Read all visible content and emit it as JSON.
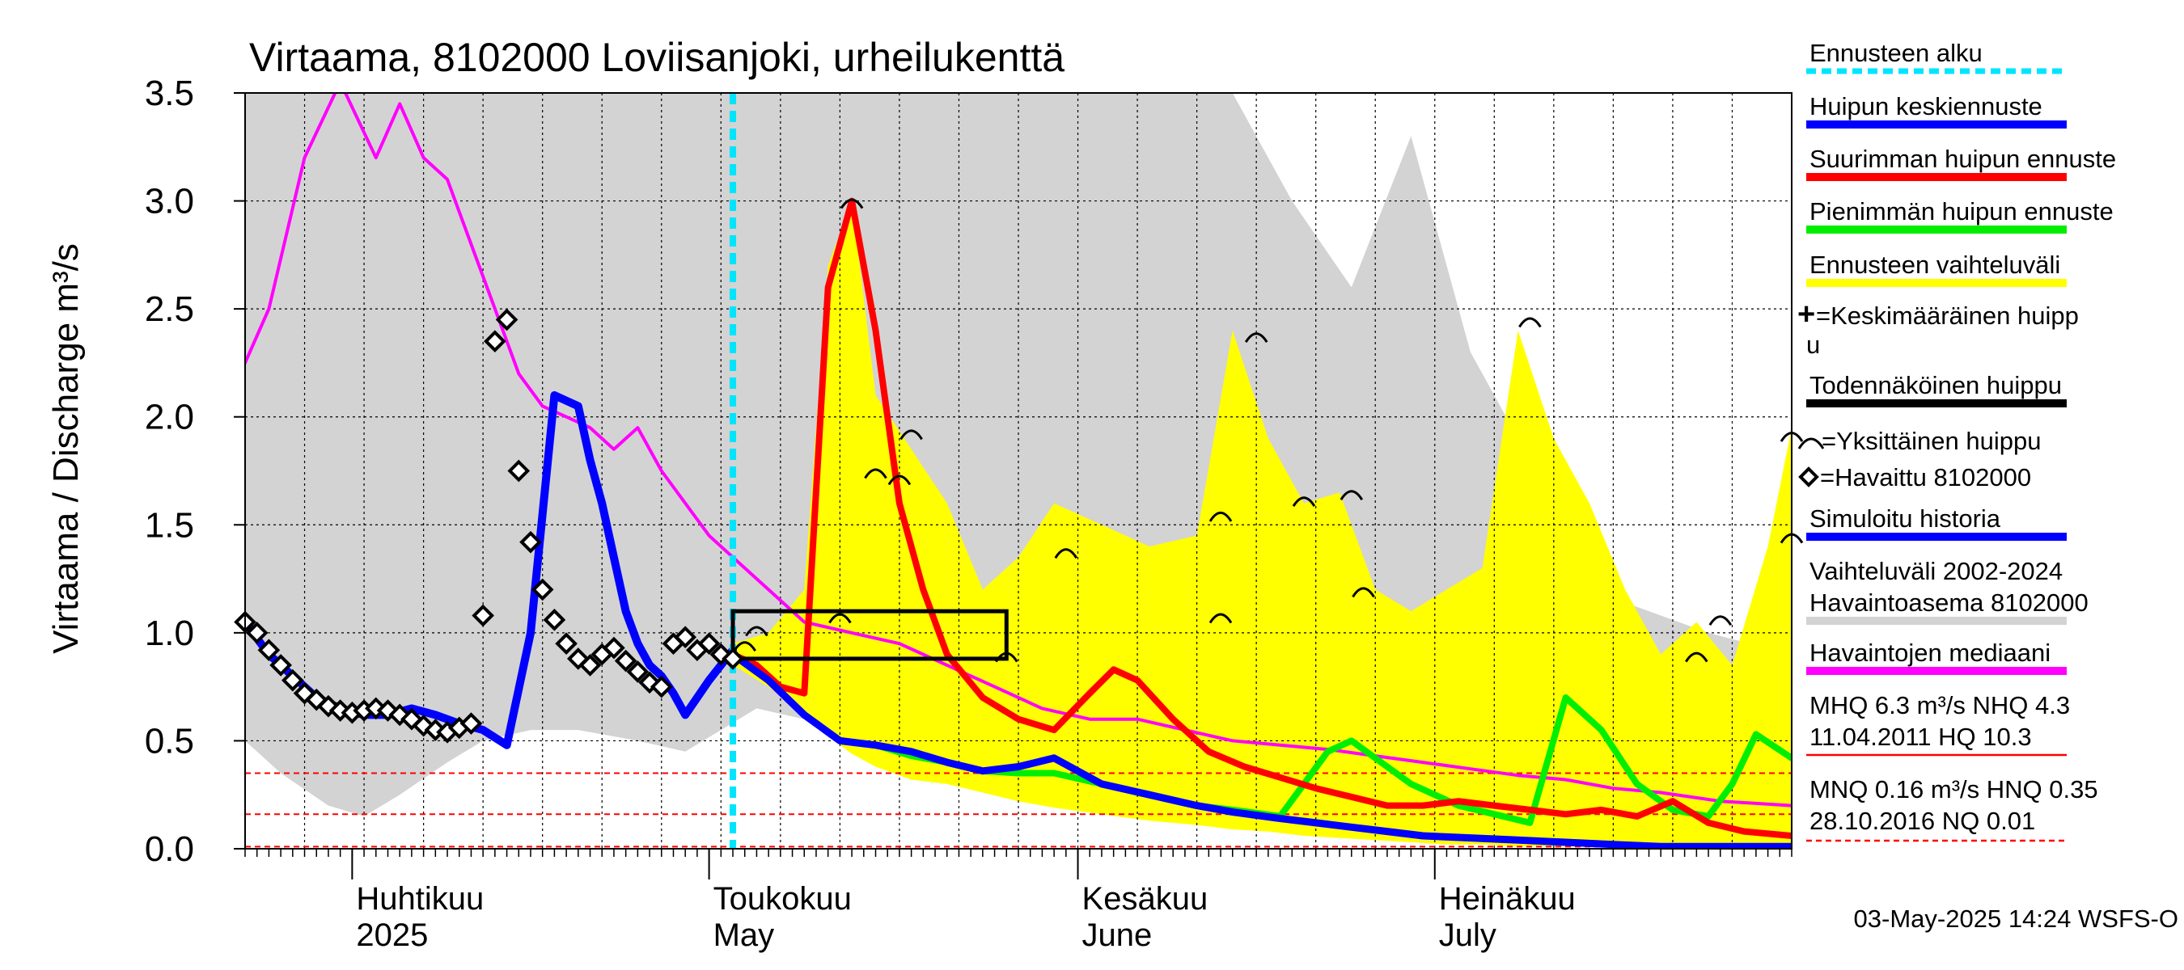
{
  "chart_data": {
    "type": "line",
    "title": "Virtaama, 8102000 Loviisanjoki, urheilukenttä",
    "ylabel": "Virtaama / Discharge   m³/s",
    "ylim": [
      0,
      3.5
    ],
    "yticks": [
      "0.0",
      "0.5",
      "1.0",
      "1.5",
      "2.0",
      "2.5",
      "3.0",
      "3.5"
    ],
    "xlim": [
      "2025-03-23",
      "2025-07-31"
    ],
    "grid": true,
    "legend_position": "right",
    "months": [
      {
        "fi": "Huhtikuu",
        "en": "2025",
        "date": "2025-04-01"
      },
      {
        "fi": "Toukokuu",
        "en": "May",
        "date": "2025-05-01"
      },
      {
        "fi": "Kesäkuu",
        "en": "June",
        "date": "2025-06-01"
      },
      {
        "fi": "Heinäkuu",
        "en": "July",
        "date": "2025-07-01"
      }
    ],
    "forecast_start": "2025-05-03",
    "reference_lines": [
      {
        "name": "MHQ",
        "value": 6.3
      },
      {
        "name": "NHQ",
        "value": 4.3
      },
      {
        "name": "HQ",
        "value": 10.3
      },
      {
        "name": "MNQ",
        "value": 0.16
      },
      {
        "name": "HNQ",
        "value": 0.35
      },
      {
        "name": "NQ",
        "value": 0.01
      }
    ],
    "probable_peak_box": {
      "x_start": "2025-05-03",
      "x_end": "2025-05-26",
      "y_low": 0.88,
      "y_high": 1.1
    },
    "series": [
      {
        "name": "Vaihteluväli 2002-2024 Havaintoasema 8102000",
        "kind": "band",
        "color": "#d3d3d3",
        "x": [
          "2025-03-23",
          "2025-03-26",
          "2025-03-30",
          "2025-04-02",
          "2025-04-05",
          "2025-04-09",
          "2025-04-12",
          "2025-04-16",
          "2025-04-20",
          "2025-04-25",
          "2025-04-29",
          "2025-05-02",
          "2025-05-05",
          "2025-05-09",
          "2025-05-13",
          "2025-05-17",
          "2025-05-21",
          "2025-05-25",
          "2025-05-30",
          "2025-06-04",
          "2025-06-09",
          "2025-06-14",
          "2025-06-19",
          "2025-06-24",
          "2025-06-29",
          "2025-07-04",
          "2025-07-09",
          "2025-07-14",
          "2025-07-19",
          "2025-07-24",
          "2025-07-31"
        ],
        "upper": [
          3.5,
          3.5,
          3.5,
          3.5,
          3.5,
          3.5,
          3.5,
          3.5,
          3.5,
          3.5,
          3.5,
          3.5,
          3.5,
          3.5,
          3.5,
          3.5,
          3.5,
          3.5,
          3.5,
          3.5,
          3.5,
          3.5,
          3.0,
          2.6,
          3.3,
          2.3,
          1.8,
          1.2,
          1.1,
          1.0,
          0.9
        ],
        "lower": [
          0.5,
          0.35,
          0.2,
          0.15,
          0.25,
          0.4,
          0.5,
          0.55,
          0.55,
          0.5,
          0.45,
          0.55,
          0.65,
          0.6,
          0.5,
          0.42,
          0.38,
          0.33,
          0.28,
          0.24,
          0.2,
          0.17,
          0.15,
          0.13,
          0.11,
          0.09,
          0.07,
          0.06,
          0.05,
          0.04,
          0.03
        ]
      },
      {
        "name": "Ennusteen vaihteluväli",
        "kind": "band",
        "color": "#ffff00",
        "x": [
          "2025-05-03",
          "2025-05-06",
          "2025-05-09",
          "2025-05-11",
          "2025-05-13",
          "2025-05-15",
          "2025-05-18",
          "2025-05-21",
          "2025-05-24",
          "2025-05-27",
          "2025-05-30",
          "2025-06-03",
          "2025-06-07",
          "2025-06-11",
          "2025-06-14",
          "2025-06-17",
          "2025-06-20",
          "2025-06-23",
          "2025-06-26",
          "2025-06-29",
          "2025-07-02",
          "2025-07-05",
          "2025-07-08",
          "2025-07-11",
          "2025-07-14",
          "2025-07-17",
          "2025-07-20",
          "2025-07-23",
          "2025-07-26",
          "2025-07-29",
          "2025-07-31"
        ],
        "upper": [
          0.95,
          1.0,
          1.2,
          2.7,
          3.0,
          2.1,
          1.85,
          1.6,
          1.2,
          1.35,
          1.6,
          1.5,
          1.4,
          1.45,
          2.4,
          1.9,
          1.6,
          1.65,
          1.2,
          1.1,
          1.2,
          1.3,
          2.4,
          1.9,
          1.6,
          1.2,
          0.9,
          1.05,
          0.85,
          1.4,
          1.95
        ],
        "lower": [
          0.85,
          0.75,
          0.62,
          0.52,
          0.44,
          0.38,
          0.32,
          0.3,
          0.26,
          0.22,
          0.19,
          0.16,
          0.13,
          0.11,
          0.09,
          0.08,
          0.06,
          0.05,
          0.04,
          0.03,
          0.02,
          0.02,
          0.01,
          0.01,
          0.01,
          0.01,
          0.01,
          0.01,
          0.01,
          0.01,
          0.01
        ]
      },
      {
        "name": "Havaintojen mediaani",
        "kind": "line",
        "color": "#ff00ff",
        "x": [
          "2025-03-23",
          "2025-03-25",
          "2025-03-28",
          "2025-03-31",
          "2025-04-03",
          "2025-04-05",
          "2025-04-07",
          "2025-04-09",
          "2025-04-11",
          "2025-04-13",
          "2025-04-15",
          "2025-04-17",
          "2025-04-19",
          "2025-04-21",
          "2025-04-23",
          "2025-04-25",
          "2025-04-27",
          "2025-04-29",
          "2025-05-01",
          "2025-05-03",
          "2025-05-06",
          "2025-05-09",
          "2025-05-13",
          "2025-05-17",
          "2025-05-21",
          "2025-05-25",
          "2025-05-29",
          "2025-06-02",
          "2025-06-06",
          "2025-06-10",
          "2025-06-14",
          "2025-06-18",
          "2025-06-22",
          "2025-06-26",
          "2025-06-30",
          "2025-07-04",
          "2025-07-08",
          "2025-07-12",
          "2025-07-16",
          "2025-07-20",
          "2025-07-25",
          "2025-07-31"
        ],
        "values": [
          2.25,
          2.5,
          3.2,
          3.55,
          3.2,
          3.45,
          3.2,
          3.1,
          2.8,
          2.5,
          2.2,
          2.05,
          2.0,
          1.95,
          1.85,
          1.95,
          1.75,
          1.6,
          1.45,
          1.35,
          1.2,
          1.05,
          1.0,
          0.95,
          0.85,
          0.75,
          0.65,
          0.6,
          0.6,
          0.55,
          0.5,
          0.48,
          0.46,
          0.43,
          0.4,
          0.37,
          0.34,
          0.32,
          0.28,
          0.26,
          0.22,
          0.2
        ]
      },
      {
        "name": "Simuloitu historia",
        "kind": "line",
        "color": "#0000ff",
        "x": [
          "2025-03-23",
          "2025-03-25",
          "2025-03-27",
          "2025-03-29",
          "2025-03-31",
          "2025-04-02",
          "2025-04-04",
          "2025-04-06",
          "2025-04-08",
          "2025-04-10",
          "2025-04-12",
          "2025-04-14",
          "2025-04-16",
          "2025-04-18",
          "2025-04-20",
          "2025-04-21",
          "2025-04-22",
          "2025-04-23",
          "2025-04-24",
          "2025-04-25",
          "2025-04-26",
          "2025-04-27",
          "2025-04-28",
          "2025-04-29",
          "2025-05-01",
          "2025-05-03"
        ],
        "values": [
          1.05,
          0.9,
          0.8,
          0.7,
          0.65,
          0.62,
          0.62,
          0.65,
          0.62,
          0.58,
          0.55,
          0.48,
          1.0,
          2.1,
          2.05,
          1.8,
          1.6,
          1.35,
          1.1,
          0.95,
          0.85,
          0.8,
          0.72,
          0.62,
          0.78,
          0.92
        ]
      },
      {
        "name": "Havaittu 8102000",
        "kind": "scatter",
        "color": "#000000",
        "x": [
          "2025-03-23",
          "2025-03-24",
          "2025-03-25",
          "2025-03-26",
          "2025-03-27",
          "2025-03-28",
          "2025-03-29",
          "2025-03-30",
          "2025-03-31",
          "2025-04-01",
          "2025-04-02",
          "2025-04-03",
          "2025-04-04",
          "2025-04-05",
          "2025-04-06",
          "2025-04-07",
          "2025-04-08",
          "2025-04-09",
          "2025-04-10",
          "2025-04-11",
          "2025-04-12",
          "2025-04-13",
          "2025-04-14",
          "2025-04-15",
          "2025-04-16",
          "2025-04-17",
          "2025-04-18",
          "2025-04-19",
          "2025-04-20",
          "2025-04-21",
          "2025-04-22",
          "2025-04-23",
          "2025-04-24",
          "2025-04-25",
          "2025-04-26",
          "2025-04-27",
          "2025-04-28",
          "2025-04-29",
          "2025-04-30",
          "2025-05-01",
          "2025-05-02",
          "2025-05-03"
        ],
        "values": [
          1.05,
          1.0,
          0.92,
          0.85,
          0.78,
          0.72,
          0.69,
          0.66,
          0.64,
          0.63,
          0.64,
          0.65,
          0.64,
          0.62,
          0.6,
          0.57,
          0.55,
          0.54,
          0.56,
          0.58,
          1.08,
          2.35,
          2.45,
          1.75,
          1.42,
          1.2,
          1.06,
          0.95,
          0.88,
          0.85,
          0.9,
          0.93,
          0.87,
          0.82,
          0.77,
          0.75,
          0.95,
          0.98,
          0.92,
          0.95,
          0.9,
          0.88
        ]
      },
      {
        "name": "Pienimmän huipun ennuste",
        "kind": "line",
        "color": "#00ee00",
        "x": [
          "2025-05-03",
          "2025-05-06",
          "2025-05-09",
          "2025-05-12",
          "2025-05-15",
          "2025-05-18",
          "2025-05-21",
          "2025-05-24",
          "2025-05-27",
          "2025-05-30",
          "2025-06-03",
          "2025-06-07",
          "2025-06-11",
          "2025-06-14",
          "2025-06-18",
          "2025-06-20",
          "2025-06-22",
          "2025-06-24",
          "2025-06-26",
          "2025-06-29",
          "2025-07-03",
          "2025-07-06",
          "2025-07-09",
          "2025-07-12",
          "2025-07-15",
          "2025-07-18",
          "2025-07-21",
          "2025-07-24",
          "2025-07-26",
          "2025-07-28",
          "2025-07-31"
        ],
        "values": [
          0.9,
          0.78,
          0.62,
          0.5,
          0.48,
          0.43,
          0.4,
          0.36,
          0.35,
          0.35,
          0.3,
          0.25,
          0.2,
          0.18,
          0.15,
          0.3,
          0.45,
          0.5,
          0.42,
          0.3,
          0.2,
          0.16,
          0.12,
          0.7,
          0.55,
          0.3,
          0.18,
          0.15,
          0.3,
          0.53,
          0.42
        ]
      },
      {
        "name": "Suurimman huipun ennuste",
        "kind": "line",
        "color": "#ff0000",
        "x": [
          "2025-05-03",
          "2025-05-05",
          "2025-05-07",
          "2025-05-09",
          "2025-05-11",
          "2025-05-13",
          "2025-05-15",
          "2025-05-17",
          "2025-05-19",
          "2025-05-21",
          "2025-05-24",
          "2025-05-27",
          "2025-05-30",
          "2025-06-02",
          "2025-06-04",
          "2025-06-06",
          "2025-06-09",
          "2025-06-12",
          "2025-06-15",
          "2025-06-18",
          "2025-06-21",
          "2025-06-24",
          "2025-06-27",
          "2025-06-30",
          "2025-07-03",
          "2025-07-06",
          "2025-07-09",
          "2025-07-12",
          "2025-07-15",
          "2025-07-18",
          "2025-07-21",
          "2025-07-24",
          "2025-07-27",
          "2025-07-31"
        ],
        "values": [
          0.9,
          0.85,
          0.75,
          0.72,
          2.6,
          3.0,
          2.4,
          1.6,
          1.2,
          0.9,
          0.7,
          0.6,
          0.55,
          0.72,
          0.83,
          0.78,
          0.6,
          0.45,
          0.38,
          0.33,
          0.28,
          0.24,
          0.2,
          0.2,
          0.22,
          0.2,
          0.18,
          0.16,
          0.18,
          0.15,
          0.22,
          0.12,
          0.08,
          0.06
        ]
      },
      {
        "name": "Huipun keskiennuste",
        "kind": "line",
        "color": "#0000ff",
        "x": [
          "2025-05-03",
          "2025-05-06",
          "2025-05-09",
          "2025-05-12",
          "2025-05-15",
          "2025-05-18",
          "2025-05-21",
          "2025-05-24",
          "2025-05-27",
          "2025-05-30",
          "2025-06-03",
          "2025-06-07",
          "2025-06-11",
          "2025-06-14",
          "2025-06-18",
          "2025-06-21",
          "2025-06-24",
          "2025-06-27",
          "2025-06-30",
          "2025-07-04",
          "2025-07-08",
          "2025-07-12",
          "2025-07-16",
          "2025-07-20",
          "2025-07-24",
          "2025-07-31"
        ],
        "values": [
          0.9,
          0.78,
          0.62,
          0.5,
          0.48,
          0.45,
          0.4,
          0.36,
          0.38,
          0.42,
          0.3,
          0.25,
          0.2,
          0.17,
          0.14,
          0.12,
          0.1,
          0.08,
          0.06,
          0.05,
          0.04,
          0.03,
          0.02,
          0.01,
          0.01,
          0.01
        ]
      }
    ],
    "single_peaks": [
      {
        "x": "2025-05-13",
        "y": 3.0
      },
      {
        "x": "2025-05-15",
        "y": 1.75
      },
      {
        "x": "2025-05-17",
        "y": 1.72
      },
      {
        "x": "2025-05-18",
        "y": 1.93
      },
      {
        "x": "2025-05-12",
        "y": 1.08
      },
      {
        "x": "2025-05-04",
        "y": 0.95
      },
      {
        "x": "2025-05-05",
        "y": 1.02
      },
      {
        "x": "2025-05-26",
        "y": 0.9
      },
      {
        "x": "2025-05-31",
        "y": 1.38
      },
      {
        "x": "2025-06-13",
        "y": 1.55
      },
      {
        "x": "2025-06-13",
        "y": 1.08
      },
      {
        "x": "2025-06-16",
        "y": 2.38
      },
      {
        "x": "2025-06-20",
        "y": 1.62
      },
      {
        "x": "2025-06-24",
        "y": 1.65
      },
      {
        "x": "2025-06-25",
        "y": 1.2
      },
      {
        "x": "2025-07-09",
        "y": 2.45
      },
      {
        "x": "2025-07-23",
        "y": 0.9
      },
      {
        "x": "2025-07-25",
        "y": 1.07
      },
      {
        "x": "2025-07-31",
        "y": 1.92
      },
      {
        "x": "2025-07-31",
        "y": 1.45
      }
    ]
  },
  "legend": [
    {
      "label": "Ennusteen alku",
      "style": "dotted",
      "color": "#00e5ff"
    },
    {
      "label": "Huipun keskiennuste",
      "style": "line",
      "color": "#0000ff"
    },
    {
      "label": "Suurimman huipun ennuste",
      "style": "line",
      "color": "#ff0000"
    },
    {
      "label": "Pienimmän huipun ennuste",
      "style": "line",
      "color": "#00ee00"
    },
    {
      "label": "Ennusteen vaihteluväli",
      "style": "line",
      "color": "#ffff00"
    },
    {
      "label_line1": "=Keskimääräinen huipp",
      "label_line2": "u",
      "style": "plus",
      "color": "#000000"
    },
    {
      "label": "Todennäköinen huippu",
      "style": "line",
      "color": "#000000"
    },
    {
      "label": "=Yksittäinen huippu",
      "style": "arc",
      "color": "#000000"
    },
    {
      "label": "=Havaittu 8102000",
      "style": "diamond",
      "color": "#000000"
    },
    {
      "label": "Simuloitu historia",
      "style": "line",
      "color": "#0000ff"
    },
    {
      "label_line1": "Vaihteluväli 2002-2024",
      "label_line2": " Havaintoasema 8102000",
      "style": "line",
      "color": "#d3d3d3"
    },
    {
      "label": "Havaintojen mediaani",
      "style": "line",
      "color": "#ff00ff"
    },
    {
      "label_line1": "MHQ  6.3 m³/s NHQ  4.3",
      "label_line2": "11.04.2011 HQ 10.3",
      "style": "thin",
      "color": "#ff0000"
    },
    {
      "label_line1": "MNQ 0.16 m³/s HNQ 0.35",
      "label_line2": "28.10.2016 NQ 0.01",
      "style": "dashed",
      "color": "#ff0000"
    }
  ],
  "footer": {
    "timestamp": "03-May-2025 14:24 WSFS-O"
  }
}
